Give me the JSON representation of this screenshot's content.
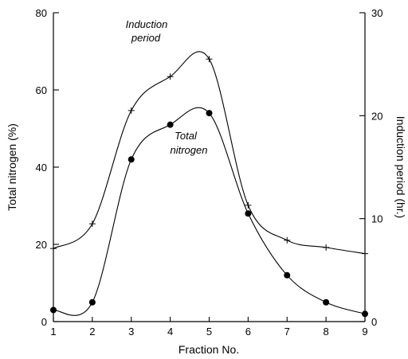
{
  "chart_data": {
    "type": "line",
    "xlabel": "Fraction No.",
    "ylabel_left": "Total nitrogen (%)",
    "ylabel_right": "Induction period (hr.)",
    "x": [
      1,
      2,
      3,
      4,
      5,
      6,
      7,
      8,
      9
    ],
    "xlim": [
      1,
      9
    ],
    "ylim_left": [
      0,
      80
    ],
    "ylim_right": [
      0,
      30
    ],
    "x_ticks": [
      1,
      2,
      3,
      4,
      5,
      6,
      7,
      8,
      9
    ],
    "y_ticks_left": [
      0,
      20,
      40,
      60,
      80
    ],
    "y_ticks_right": [
      0,
      10,
      20,
      30
    ],
    "series": [
      {
        "name": "Total nitrogen",
        "axis": "left",
        "marker": "dot",
        "values": [
          3,
          5,
          42,
          51,
          54,
          28,
          12,
          5,
          2
        ]
      },
      {
        "name": "Induction period",
        "axis": "right",
        "marker": "plus",
        "values": [
          7.1,
          9.5,
          20.5,
          23.8,
          25.5,
          11.3,
          7.9,
          7.2,
          6.6
        ]
      }
    ],
    "annotations": [
      {
        "lines": [
          "Induction",
          "period"
        ],
        "series": "Induction period"
      },
      {
        "lines": [
          "Total",
          "nitrogen"
        ],
        "series": "Total nitrogen"
      }
    ],
    "grid": false
  }
}
